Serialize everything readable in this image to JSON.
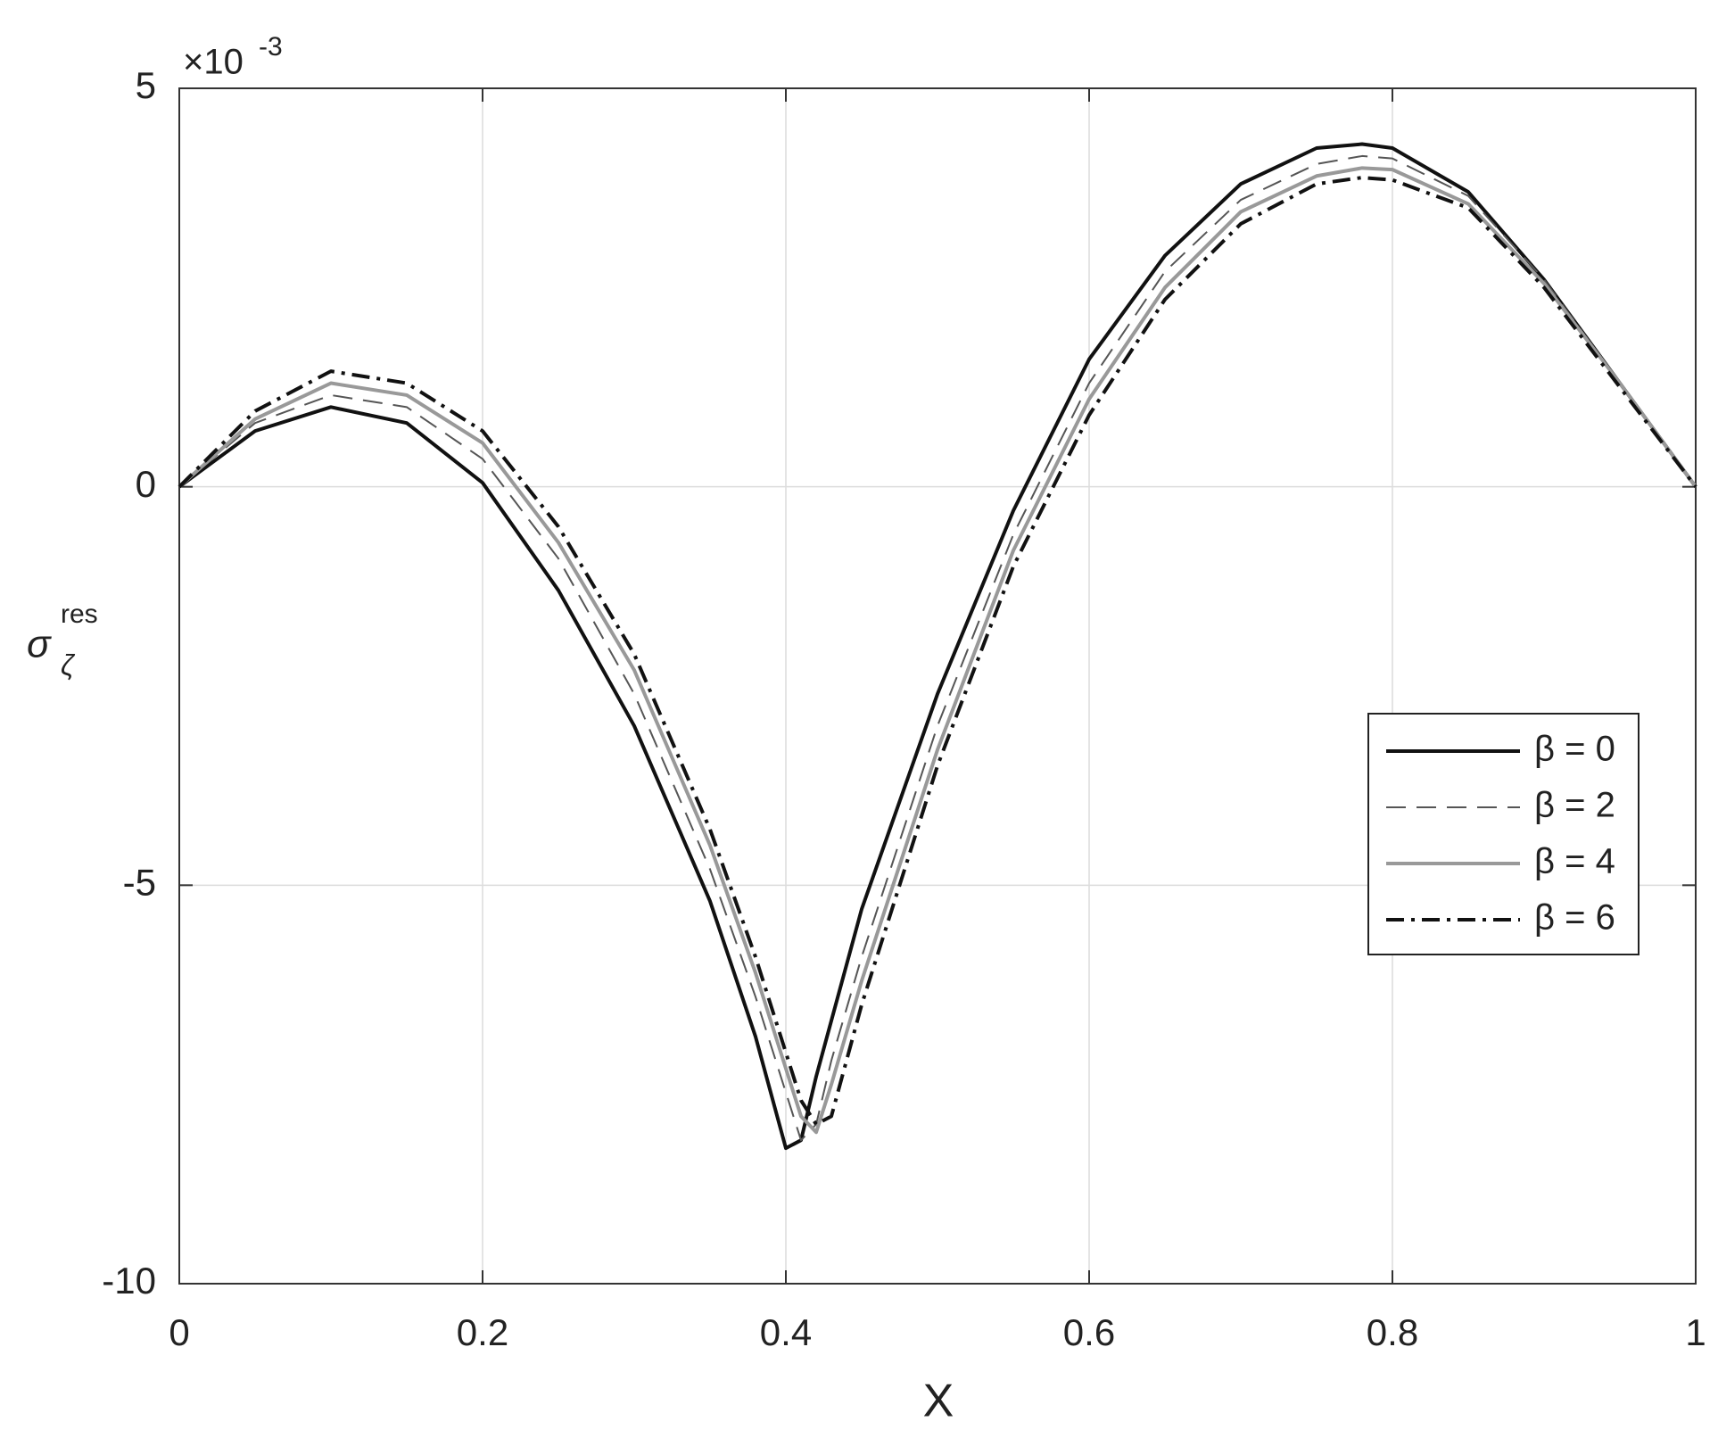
{
  "chart_data": {
    "type": "line",
    "xlabel": "X",
    "ylabel": {
      "symbol": "σ",
      "subscript": "ζ",
      "superscript": "res"
    },
    "y_multiplier": {
      "base": "×10",
      "exponent": "-3"
    },
    "x": [
      0,
      0.05,
      0.1,
      0.15,
      0.2,
      0.25,
      0.3,
      0.35,
      0.38,
      0.4,
      0.41,
      0.42,
      0.43,
      0.45,
      0.5,
      0.55,
      0.6,
      0.65,
      0.7,
      0.75,
      0.78,
      0.8,
      0.85,
      0.9,
      0.95,
      1
    ],
    "series": [
      {
        "name": "β = 0",
        "color": "#111111",
        "linestyle": "solid",
        "width": 4,
        "values": [
          0,
          0.7,
          1.0,
          0.8,
          0.05,
          -1.3,
          -3.0,
          -5.2,
          -6.9,
          -8.3,
          -8.2,
          -7.4,
          -6.7,
          -5.3,
          -2.6,
          -0.3,
          1.6,
          2.9,
          3.8,
          4.25,
          4.3,
          4.25,
          3.7,
          2.6,
          1.3,
          0
        ]
      },
      {
        "name": "β = 2",
        "color": "#555555",
        "linestyle": "dashed",
        "width": 2,
        "values": [
          0,
          0.8,
          1.15,
          1.0,
          0.35,
          -0.9,
          -2.6,
          -4.8,
          -6.4,
          -7.6,
          -8.2,
          -8.0,
          -7.2,
          -5.9,
          -3.0,
          -0.6,
          1.3,
          2.7,
          3.6,
          4.05,
          4.15,
          4.12,
          3.65,
          2.6,
          1.3,
          0
        ]
      },
      {
        "name": "β = 4",
        "color": "#999999",
        "linestyle": "solid",
        "width": 4,
        "values": [
          0,
          0.85,
          1.3,
          1.15,
          0.55,
          -0.7,
          -2.3,
          -4.5,
          -6.1,
          -7.3,
          -7.9,
          -8.1,
          -7.5,
          -6.2,
          -3.3,
          -0.8,
          1.1,
          2.5,
          3.45,
          3.9,
          4.0,
          3.98,
          3.55,
          2.55,
          1.3,
          0
        ]
      },
      {
        "name": "β = 6",
        "color": "#111111",
        "linestyle": "dashdot",
        "width": 4,
        "values": [
          0,
          0.95,
          1.45,
          1.3,
          0.7,
          -0.5,
          -2.1,
          -4.3,
          -5.9,
          -7.1,
          -7.7,
          -8.0,
          -7.9,
          -6.5,
          -3.5,
          -1.0,
          0.9,
          2.35,
          3.3,
          3.8,
          3.88,
          3.85,
          3.5,
          2.5,
          1.25,
          0
        ]
      }
    ],
    "xlim": [
      0,
      1
    ],
    "xticks": [
      0,
      0.2,
      0.4,
      0.6,
      0.8,
      1
    ],
    "ylim": [
      -10,
      5
    ],
    "yticks": [
      -10,
      -5,
      0,
      5
    ],
    "grid": true,
    "legend": "right"
  }
}
